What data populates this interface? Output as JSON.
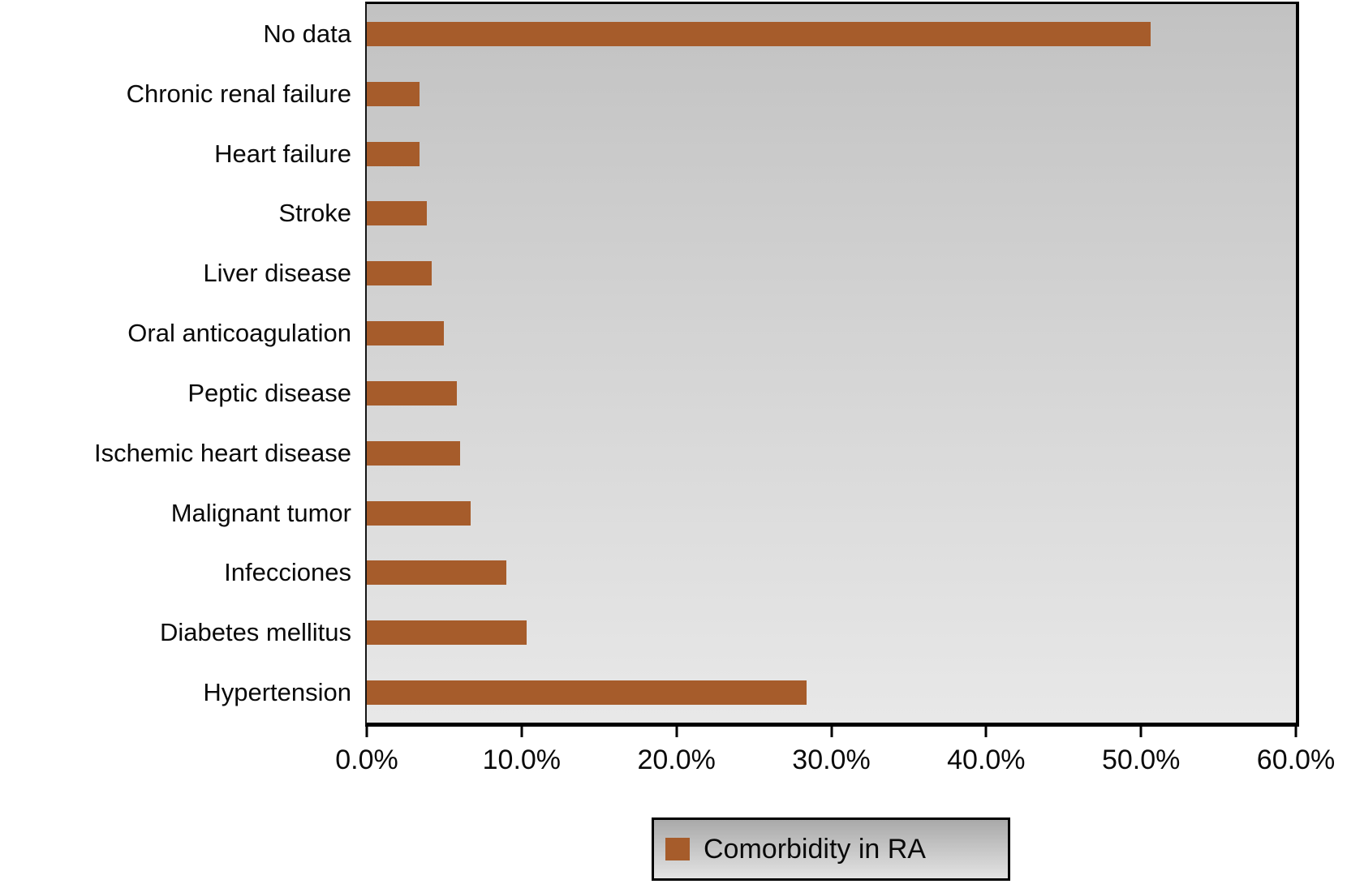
{
  "chart_data": {
    "type": "bar",
    "orientation": "horizontal",
    "title": "",
    "xlabel": "",
    "ylabel": "",
    "unit": "%",
    "categories": [
      "No data",
      "Chronic renal failure",
      "Heart failure",
      "Stroke",
      "Liver disease",
      "Oral anticoagulation",
      "Peptic disease",
      "Ischemic heart disease",
      "Malignant tumor",
      "Infecciones",
      "Diabetes mellitus",
      "Hypertension"
    ],
    "values": [
      50.6,
      3.4,
      3.4,
      3.9,
      4.2,
      5.0,
      5.8,
      6.0,
      6.7,
      9.0,
      10.3,
      28.4
    ],
    "xlim": [
      0,
      60
    ],
    "x_tick_labels": [
      "0.0%",
      "10.0%",
      "20.0%",
      "30.0%",
      "40.0%",
      "50.0%",
      "60.0%"
    ],
    "grid": false,
    "legend": {
      "label": "Comorbidity in RA",
      "position": "bottom-center"
    },
    "colors": {
      "bar": "#a65c2b",
      "plot_bg_top": "#c2c2c2",
      "plot_bg_bottom": "#e8e8e8",
      "axis": "#000000",
      "text": "#0a0a0a"
    }
  }
}
